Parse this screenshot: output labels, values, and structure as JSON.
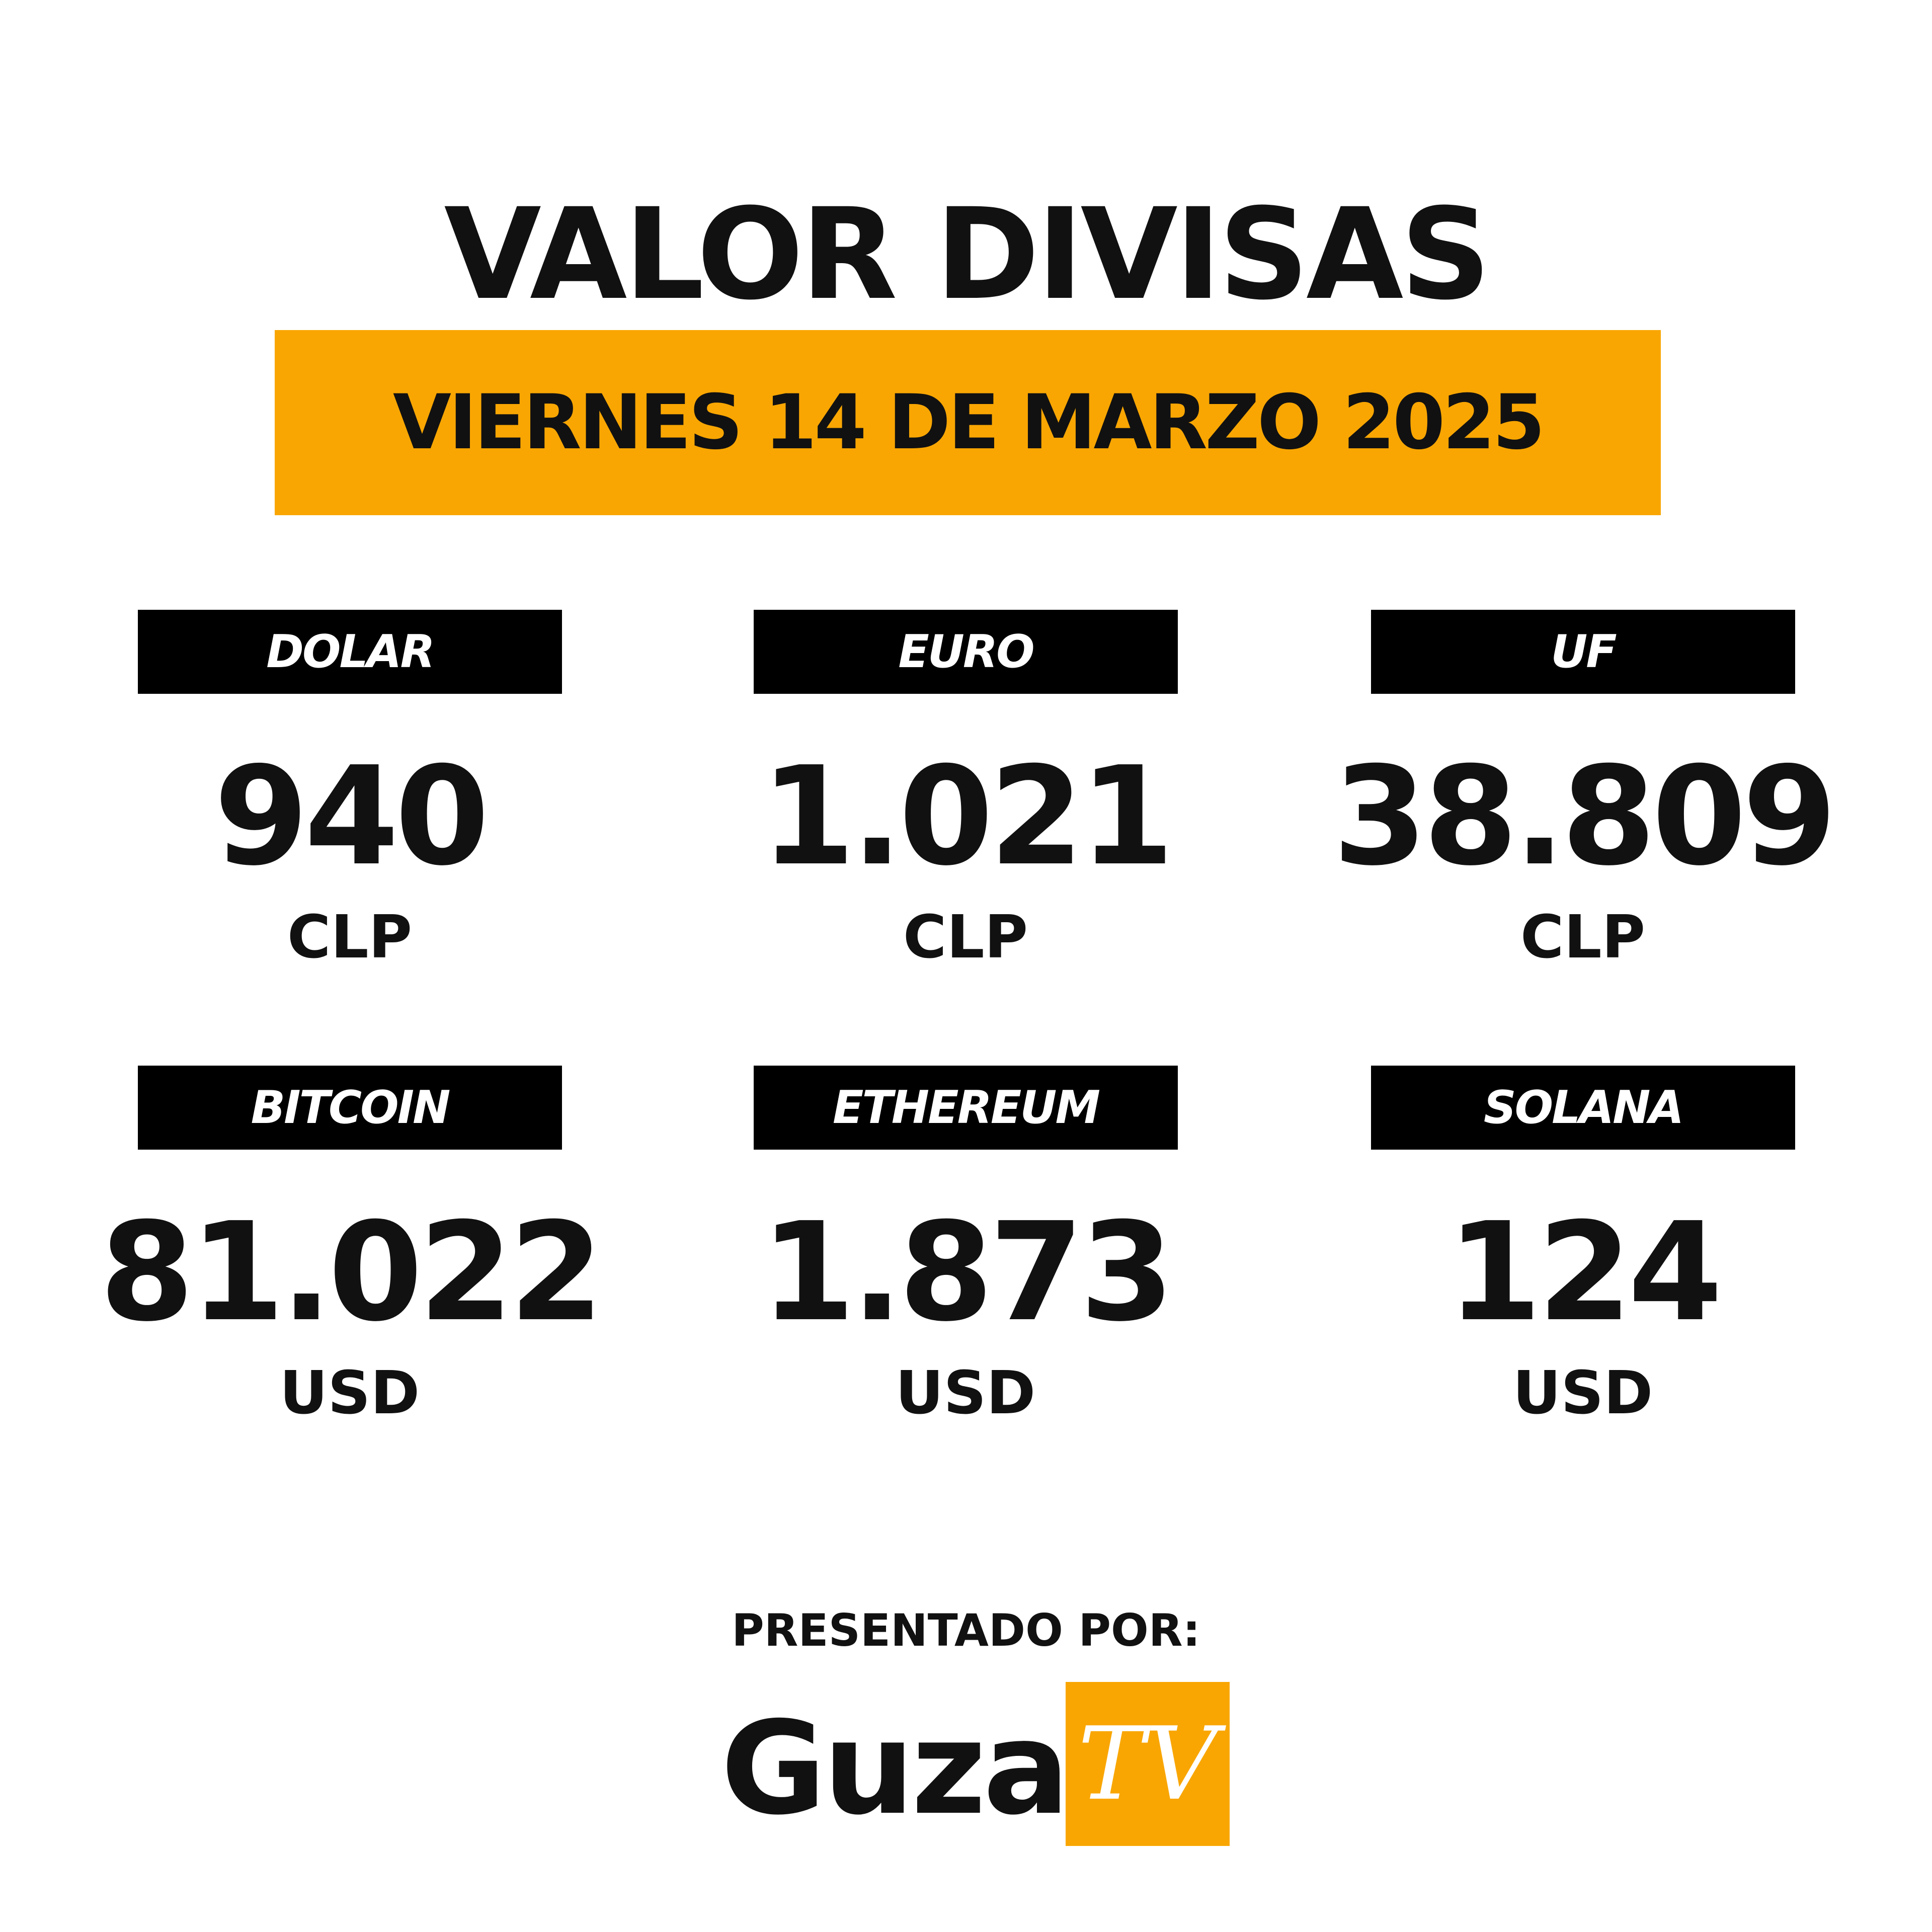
{
  "header": {
    "title": "VALOR DIVISAS",
    "date": "VIERNES 14 DE MARZO 2025"
  },
  "items": [
    {
      "name": "DOLAR",
      "value": "940",
      "unit": "CLP"
    },
    {
      "name": "EURO",
      "value": "1.021",
      "unit": "CLP"
    },
    {
      "name": "UF",
      "value": "38.809",
      "unit": "CLP"
    },
    {
      "name": "BITCOIN",
      "value": "81.022",
      "unit": "USD"
    },
    {
      "name": "ETHEREUM",
      "value": "1.873",
      "unit": "USD"
    },
    {
      "name": "SOLANA",
      "value": "124",
      "unit": "USD"
    }
  ],
  "footer": {
    "presented_by": "PRESENTADO POR:",
    "logo_main": "Guza",
    "logo_tv": "TV"
  }
}
